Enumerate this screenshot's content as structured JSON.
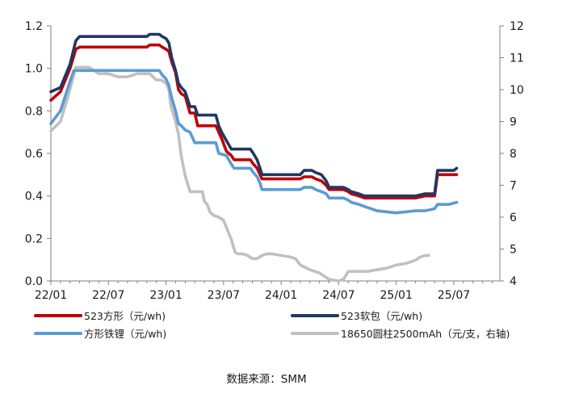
{
  "chart_data": {
    "type": "line",
    "title": "",
    "xlabel": "",
    "ylabel": "",
    "x_ticks": [
      "22/01",
      "22/07",
      "23/01",
      "23/07",
      "24/01",
      "24/07",
      "25/01",
      "25/07"
    ],
    "x_range": [
      0,
      46.8
    ],
    "y_left": {
      "range": [
        0,
        1.2
      ],
      "ticks": [
        "0.0",
        "0.2",
        "0.4",
        "0.6",
        "0.8",
        "1.0",
        "1.2"
      ]
    },
    "y_right": {
      "range": [
        4,
        12
      ],
      "ticks": [
        "4",
        "5",
        "6",
        "7",
        "8",
        "9",
        "10",
        "11",
        "12"
      ]
    },
    "grid": false,
    "legend_position": "bottom",
    "source": "数据来源：SMM",
    "series": [
      {
        "name": "523方形（元/wh)",
        "axis": "left",
        "color": "#c00000",
        "points": [
          [
            0,
            0.85
          ],
          [
            1,
            0.89
          ],
          [
            2,
            1.0
          ],
          [
            2.6,
            1.09
          ],
          [
            3,
            1.1
          ],
          [
            7,
            1.1
          ],
          [
            9,
            1.1
          ],
          [
            10,
            1.1
          ],
          [
            10.3,
            1.11
          ],
          [
            11.3,
            1.11
          ],
          [
            11.6,
            1.1
          ],
          [
            12,
            1.09
          ],
          [
            12.3,
            1.08
          ],
          [
            12.6,
            1.03
          ],
          [
            13,
            0.98
          ],
          [
            13.3,
            0.9
          ],
          [
            13.6,
            0.88
          ],
          [
            14,
            0.87
          ],
          [
            14.5,
            0.79
          ],
          [
            15,
            0.79
          ],
          [
            15.3,
            0.73
          ],
          [
            17.2,
            0.73
          ],
          [
            17.5,
            0.7
          ],
          [
            17.8,
            0.67
          ],
          [
            18.3,
            0.61
          ],
          [
            18.8,
            0.59
          ],
          [
            19.1,
            0.57
          ],
          [
            20.8,
            0.57
          ],
          [
            21.1,
            0.55
          ],
          [
            21.5,
            0.53
          ],
          [
            21.8,
            0.5
          ],
          [
            22,
            0.48
          ],
          [
            24,
            0.48
          ],
          [
            26,
            0.48
          ],
          [
            26.4,
            0.49
          ],
          [
            27.2,
            0.49
          ],
          [
            27.6,
            0.48
          ],
          [
            28.2,
            0.47
          ],
          [
            28.7,
            0.45
          ],
          [
            29,
            0.43
          ],
          [
            30.5,
            0.43
          ],
          [
            31,
            0.42
          ],
          [
            31.3,
            0.41
          ],
          [
            32.1,
            0.4
          ],
          [
            32.7,
            0.39
          ],
          [
            37,
            0.39
          ],
          [
            38,
            0.39
          ],
          [
            39,
            0.4
          ],
          [
            40,
            0.4
          ],
          [
            40.3,
            0.5
          ],
          [
            41.5,
            0.5
          ],
          [
            42,
            0.5
          ],
          [
            42.3,
            0.5
          ]
        ]
      },
      {
        "name": "523软包（元/wh)",
        "axis": "left",
        "color": "#1f3864",
        "points": [
          [
            0,
            0.89
          ],
          [
            1,
            0.91
          ],
          [
            2,
            1.02
          ],
          [
            2.6,
            1.13
          ],
          [
            3,
            1.15
          ],
          [
            7,
            1.15
          ],
          [
            10,
            1.15
          ],
          [
            10.3,
            1.16
          ],
          [
            11.3,
            1.16
          ],
          [
            11.6,
            1.15
          ],
          [
            12,
            1.14
          ],
          [
            12.3,
            1.12
          ],
          [
            12.6,
            1.05
          ],
          [
            13,
            0.99
          ],
          [
            13.3,
            0.93
          ],
          [
            13.6,
            0.91
          ],
          [
            14,
            0.89
          ],
          [
            14.5,
            0.82
          ],
          [
            15,
            0.82
          ],
          [
            15.3,
            0.78
          ],
          [
            17.2,
            0.78
          ],
          [
            17.5,
            0.73
          ],
          [
            17.8,
            0.7
          ],
          [
            18.3,
            0.66
          ],
          [
            18.8,
            0.62
          ],
          [
            20.8,
            0.62
          ],
          [
            21.1,
            0.6
          ],
          [
            21.5,
            0.57
          ],
          [
            21.8,
            0.53
          ],
          [
            22,
            0.5
          ],
          [
            24,
            0.5
          ],
          [
            26,
            0.5
          ],
          [
            26.4,
            0.52
          ],
          [
            27.2,
            0.52
          ],
          [
            27.6,
            0.51
          ],
          [
            28.2,
            0.5
          ],
          [
            28.7,
            0.47
          ],
          [
            29,
            0.44
          ],
          [
            30.5,
            0.44
          ],
          [
            31,
            0.43
          ],
          [
            31.3,
            0.42
          ],
          [
            32.1,
            0.41
          ],
          [
            32.7,
            0.4
          ],
          [
            34,
            0.4
          ],
          [
            37,
            0.4
          ],
          [
            38,
            0.4
          ],
          [
            39,
            0.41
          ],
          [
            40,
            0.41
          ],
          [
            40.3,
            0.52
          ],
          [
            41.5,
            0.52
          ],
          [
            42,
            0.52
          ],
          [
            42.3,
            0.53
          ]
        ]
      },
      {
        "name": "方形铁锂（元/wh)",
        "axis": "left",
        "color": "#5b9bd5",
        "points": [
          [
            0,
            0.74
          ],
          [
            1,
            0.8
          ],
          [
            2,
            0.94
          ],
          [
            2.4,
            0.99
          ],
          [
            3,
            0.99
          ],
          [
            7,
            0.99
          ],
          [
            10,
            0.99
          ],
          [
            10.3,
            0.99
          ],
          [
            11.3,
            0.99
          ],
          [
            11.6,
            0.97
          ],
          [
            12,
            0.95
          ],
          [
            12.3,
            0.92
          ],
          [
            12.6,
            0.86
          ],
          [
            13,
            0.8
          ],
          [
            13.3,
            0.74
          ],
          [
            13.6,
            0.73
          ],
          [
            14,
            0.71
          ],
          [
            14.5,
            0.7
          ],
          [
            15,
            0.65
          ],
          [
            17.2,
            0.65
          ],
          [
            17.5,
            0.6
          ],
          [
            18.3,
            0.59
          ],
          [
            18.8,
            0.55
          ],
          [
            19.1,
            0.53
          ],
          [
            20.8,
            0.53
          ],
          [
            21.1,
            0.51
          ],
          [
            21.5,
            0.49
          ],
          [
            21.8,
            0.46
          ],
          [
            22,
            0.43
          ],
          [
            24,
            0.43
          ],
          [
            26,
            0.43
          ],
          [
            26.4,
            0.44
          ],
          [
            27.2,
            0.44
          ],
          [
            27.6,
            0.43
          ],
          [
            28.2,
            0.42
          ],
          [
            28.7,
            0.41
          ],
          [
            29,
            0.39
          ],
          [
            30.5,
            0.39
          ],
          [
            31,
            0.38
          ],
          [
            31.3,
            0.37
          ],
          [
            32.1,
            0.36
          ],
          [
            32.7,
            0.35
          ],
          [
            34,
            0.33
          ],
          [
            36,
            0.32
          ],
          [
            38,
            0.33
          ],
          [
            39,
            0.33
          ],
          [
            40,
            0.34
          ],
          [
            40.3,
            0.36
          ],
          [
            41.5,
            0.36
          ],
          [
            42.3,
            0.37
          ]
        ]
      },
      {
        "name": "18650圆柱2500mAh（元/支，右轴)",
        "axis": "right",
        "color": "#c0c0c0",
        "points": [
          [
            0,
            8.7
          ],
          [
            1,
            9.0
          ],
          [
            1.8,
            9.8
          ],
          [
            2.6,
            10.7
          ],
          [
            3,
            10.7
          ],
          [
            4,
            10.7
          ],
          [
            5,
            10.5
          ],
          [
            6,
            10.5
          ],
          [
            7,
            10.4
          ],
          [
            8,
            10.4
          ],
          [
            9,
            10.5
          ],
          [
            10,
            10.5
          ],
          [
            10.3,
            10.5
          ],
          [
            11,
            10.3
          ],
          [
            11.5,
            10.3
          ],
          [
            12,
            10.2
          ],
          [
            12.3,
            10.0
          ],
          [
            12.5,
            9.5
          ],
          [
            13,
            9.0
          ],
          [
            13.3,
            8.6
          ],
          [
            13.6,
            7.9
          ],
          [
            14,
            7.3
          ],
          [
            14.5,
            6.8
          ],
          [
            15,
            6.8
          ],
          [
            15.3,
            6.8
          ],
          [
            15.8,
            6.8
          ],
          [
            16,
            6.5
          ],
          [
            16.3,
            6.4
          ],
          [
            16.6,
            6.15
          ],
          [
            17,
            6.05
          ],
          [
            17.5,
            6.0
          ],
          [
            18,
            5.9
          ],
          [
            18.4,
            5.6
          ],
          [
            18.8,
            5.3
          ],
          [
            19.2,
            4.9
          ],
          [
            19.5,
            4.85
          ],
          [
            20,
            4.85
          ],
          [
            20.5,
            4.8
          ],
          [
            21,
            4.7
          ],
          [
            21.5,
            4.7
          ],
          [
            22,
            4.8
          ],
          [
            22.5,
            4.85
          ],
          [
            23,
            4.85
          ],
          [
            24,
            4.8
          ],
          [
            25,
            4.75
          ],
          [
            25.5,
            4.7
          ],
          [
            26,
            4.5
          ],
          [
            27,
            4.35
          ],
          [
            28,
            4.25
          ],
          [
            28.5,
            4.15
          ],
          [
            29,
            4.05
          ],
          [
            30,
            4.0
          ],
          [
            30.5,
            4.05
          ],
          [
            31,
            4.3
          ],
          [
            32,
            4.3
          ],
          [
            33,
            4.3
          ],
          [
            34,
            4.35
          ],
          [
            35,
            4.4
          ],
          [
            36,
            4.5
          ],
          [
            37,
            4.55
          ],
          [
            38,
            4.65
          ],
          [
            38.5,
            4.75
          ],
          [
            39,
            4.8
          ],
          [
            39.4,
            4.8
          ]
        ]
      }
    ]
  }
}
